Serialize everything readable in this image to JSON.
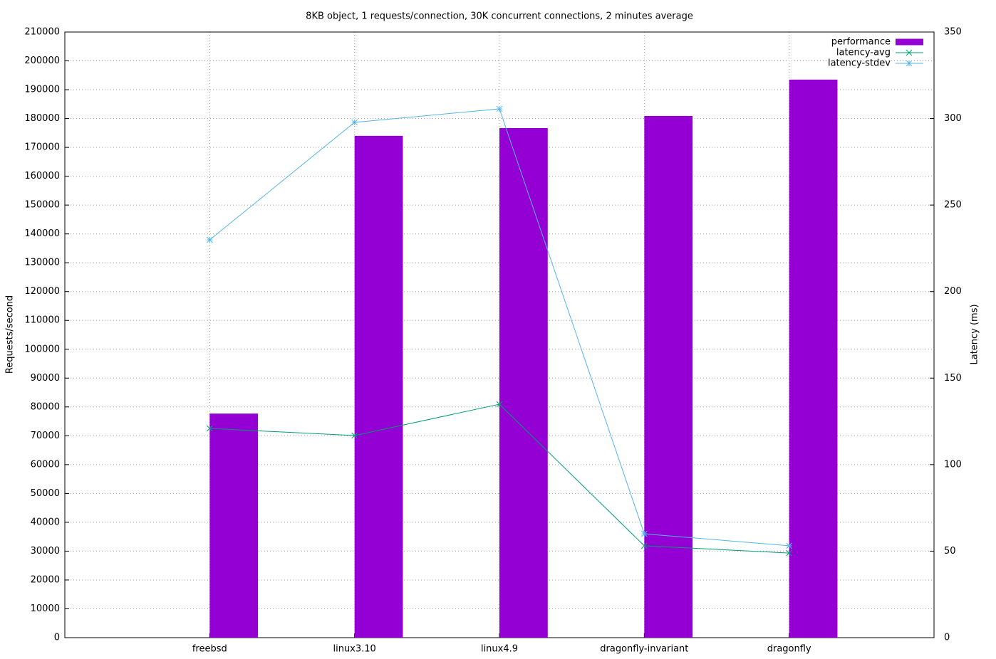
{
  "chart_data": {
    "type": "bar",
    "title": "8KB object, 1 requests/connection, 30K concurrent connections, 2 minutes average",
    "y_label": "Requests/second",
    "y2_label": "Latency (ms)",
    "categories": [
      "freebsd",
      "linux3.10",
      "linux4.9",
      "dragonfly-invariant",
      "dragonfly"
    ],
    "series": [
      {
        "name": "performance",
        "type": "bar",
        "color": "#9400d3",
        "values": [
          77700,
          174000,
          176700,
          180900,
          193500
        ]
      },
      {
        "name": "latency-avg",
        "type": "line",
        "axis": "y2",
        "marker": "x",
        "color": "#009e73",
        "values": [
          120.9,
          116.8,
          134.9,
          53.1,
          48.9
        ]
      },
      {
        "name": "latency-stdev",
        "type": "line",
        "axis": "y2",
        "marker": "star",
        "color": "#56b4e9",
        "values": [
          229.9,
          297.8,
          305.6,
          60.0,
          53.1
        ]
      }
    ],
    "ylim": [
      0,
      210000
    ],
    "yticks": [
      0,
      10000,
      20000,
      30000,
      40000,
      50000,
      60000,
      70000,
      80000,
      90000,
      100000,
      110000,
      120000,
      130000,
      140000,
      150000,
      160000,
      170000,
      180000,
      190000,
      200000,
      210000
    ],
    "y2lim": [
      0,
      350
    ],
    "y2ticks": [
      0,
      50,
      100,
      150,
      200,
      250,
      300,
      350
    ],
    "grid": true,
    "legend": "top-right"
  }
}
